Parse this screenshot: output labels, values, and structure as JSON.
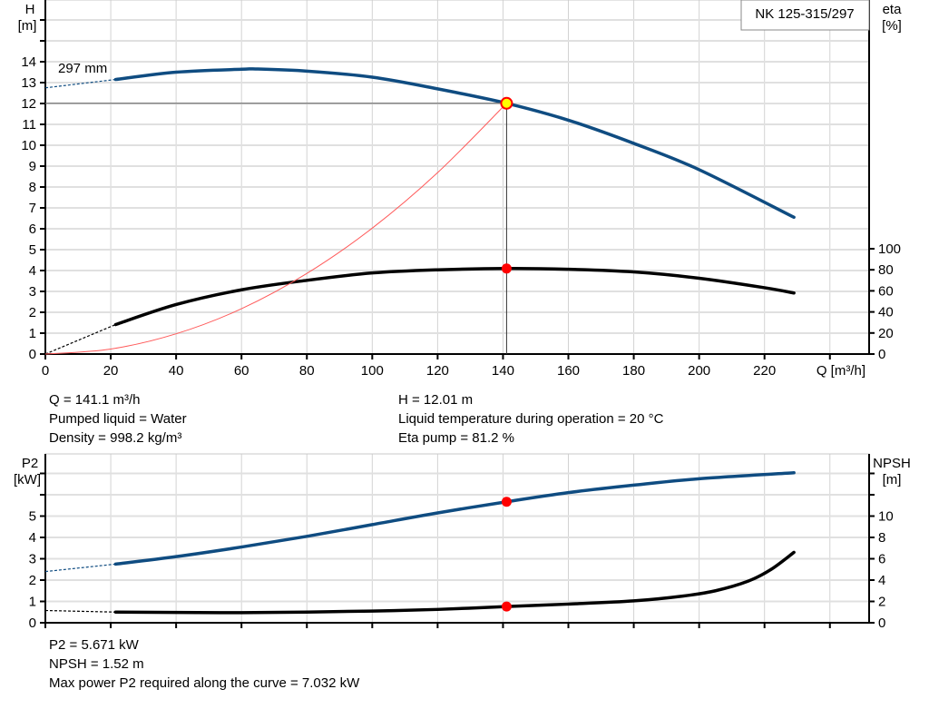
{
  "pump_model": "NK 125-315/297",
  "impeller_label": "297 mm",
  "colors": {
    "head": "#0f4c81",
    "eta": "#000000",
    "system": "#ff5a5a",
    "p2": "#0f4c81",
    "npsh": "#000000",
    "duty_point": "#ff0000",
    "duty_point_top_fill": "#ffff00",
    "grid": "#d3d3d3"
  },
  "info_top": {
    "q": "Q = 141.1 m³/h",
    "liquid": "Pumped liquid = Water",
    "density": "Density = 998.2 kg/m³",
    "h": "H = 12.01 m",
    "temp": "Liquid temperature during operation = 20 °C",
    "eta": "Eta pump = 81.2 %"
  },
  "info_bottom": {
    "p2": "P2 = 5.671 kW",
    "npsh": "NPSH = 1.52 m",
    "max_p2": "Max power P2 required along the curve = 7.032 kW"
  },
  "chart_data": [
    {
      "type": "line",
      "xlabel": "Q [m³/h]",
      "ylabel_left": "H\n[m]",
      "ylabel_right": "eta\n[%]",
      "xlim": [
        0,
        252
      ],
      "x_ticks": [
        "0",
        "20",
        "40",
        "60",
        "80",
        "100",
        "120",
        "140",
        "160",
        "180",
        "200",
        "220"
      ],
      "ylim_left": [
        0,
        17
      ],
      "y_ticks_left": [
        "0",
        "1",
        "2",
        "3",
        "4",
        "5",
        "6",
        "7",
        "8",
        "9",
        "10",
        "11",
        "12",
        "13",
        "14"
      ],
      "y_ticks_right": [
        "0",
        "20",
        "40",
        "60",
        "80",
        "100"
      ],
      "grid": true,
      "duty_point": {
        "q": 141.1,
        "h": 12.01,
        "eta": 81.2
      },
      "series": [
        {
          "axis": "left",
          "x": [
            21.5,
            40,
            60,
            65,
            80,
            100,
            120,
            141.1,
            160,
            180,
            200,
            229
          ],
          "y": [
            13.15,
            13.5,
            13.64,
            13.65,
            13.55,
            13.26,
            12.7,
            12.01,
            11.2,
            10.09,
            8.83,
            6.55
          ],
          "extrapolated_from": [
            0,
            12.75
          ]
        },
        {
          "axis": "right",
          "x": [
            21.5,
            40,
            60,
            80,
            100,
            120,
            141.1,
            160,
            180,
            200,
            220,
            229
          ],
          "y": [
            28,
            47,
            61,
            70,
            77,
            80,
            81.2,
            80.5,
            78,
            72,
            63,
            58
          ],
          "extrapolated_from": [
            0,
            0
          ]
        },
        {
          "axis": "left",
          "system_curve": true,
          "x": [
            0,
            20,
            40,
            60,
            80,
            100,
            120,
            141.1
          ],
          "y": [
            0,
            0.24,
            0.97,
            2.17,
            3.86,
            6.03,
            8.69,
            12.01
          ]
        }
      ]
    },
    {
      "type": "line",
      "ylabel_left": "P2\n[kW]",
      "ylabel_right": "NPSH\n[m]",
      "xlim": [
        0,
        252
      ],
      "ylim_left": [
        0,
        7.9
      ],
      "y_ticks_left": [
        "0",
        "1",
        "2",
        "3",
        "4",
        "5"
      ],
      "y_ticks_right": [
        "0",
        "2",
        "4",
        "6",
        "8",
        "10"
      ],
      "grid": true,
      "duty_point": {
        "q": 141.1,
        "p2": 5.671,
        "npsh": 1.52
      },
      "series": [
        {
          "axis": "left",
          "x": [
            21.5,
            40,
            60,
            80,
            100,
            120,
            141.1,
            160,
            180,
            200,
            229
          ],
          "y": [
            2.75,
            3.1,
            3.55,
            4.05,
            4.6,
            5.15,
            5.671,
            6.1,
            6.45,
            6.75,
            7.032
          ],
          "extrapolated_from": [
            0,
            2.4
          ]
        },
        {
          "axis": "right",
          "x": [
            21.5,
            40,
            60,
            80,
            100,
            120,
            141.1,
            160,
            180,
            195,
            205,
            215,
            222,
            229
          ],
          "y": [
            1.0,
            0.97,
            0.95,
            1.0,
            1.1,
            1.25,
            1.52,
            1.75,
            2.05,
            2.5,
            3.0,
            3.9,
            5.0,
            6.6
          ],
          "extrapolated_from": [
            0,
            1.15
          ]
        }
      ]
    }
  ]
}
